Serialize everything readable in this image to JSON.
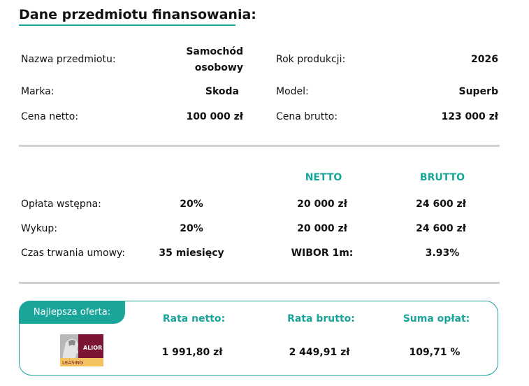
{
  "section_title": "Dane przedmiotu finansowania:",
  "subject": {
    "name_label": "Nazwa przedmiotu:",
    "name_value_line1": "Samochód",
    "name_value_line2": "osobowy",
    "year_label": "Rok produkcji:",
    "year_value": "2026",
    "brand_label": "Marka:",
    "brand_value": "Skoda",
    "model_label": "Model:",
    "model_value": "Superb",
    "net_price_label": "Cena netto:",
    "net_price_value": "100 000 zł",
    "gross_price_label": "Cena brutto:",
    "gross_price_value": "123 000 zł"
  },
  "terms": {
    "net_header": "NETTO",
    "gross_header": "BRUTTO",
    "down_payment_label": "Opłata wstępna:",
    "down_payment_percent": "20%",
    "down_payment_net": "20 000 zł",
    "down_payment_gross": "24 600 zł",
    "buyout_label": "Wykup:",
    "buyout_percent": "20%",
    "buyout_net": "20 000 zł",
    "buyout_gross": "24 600 zł",
    "duration_label": "Czas trwania umowy:",
    "duration_value": "35 miesięcy",
    "wibor_label": "WIBOR 1m:",
    "wibor_value": "3.93%"
  },
  "offer": {
    "badge_label": "Najlepsza oferta:",
    "net_rate_label": "Rata netto:",
    "gross_rate_label": "Rata brutto:",
    "fees_sum_label": "Suma opłat:",
    "net_rate_value": "1 991,80 zł",
    "gross_rate_value": "2 449,91 zł",
    "fees_sum_value": "109,71 %",
    "logo_brand": "ALIOR",
    "logo_sub": "LEASING"
  },
  "colors": {
    "accent": "#1aa59a",
    "logo_maroon": "#7a1631",
    "logo_gold": "#f2c35e"
  }
}
